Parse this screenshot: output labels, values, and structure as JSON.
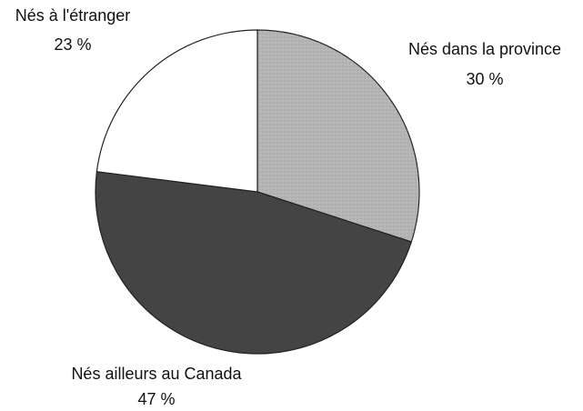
{
  "chart_data": {
    "type": "pie",
    "categories": [
      "Nés dans la province",
      "Nés ailleurs au Canada",
      "Nés à l'étranger"
    ],
    "values": [
      30,
      47,
      23
    ],
    "value_labels": [
      "30 %",
      "47 %",
      "23 %"
    ],
    "colors": [
      "#b4b4b4",
      "#444444",
      "#ffffff"
    ]
  }
}
